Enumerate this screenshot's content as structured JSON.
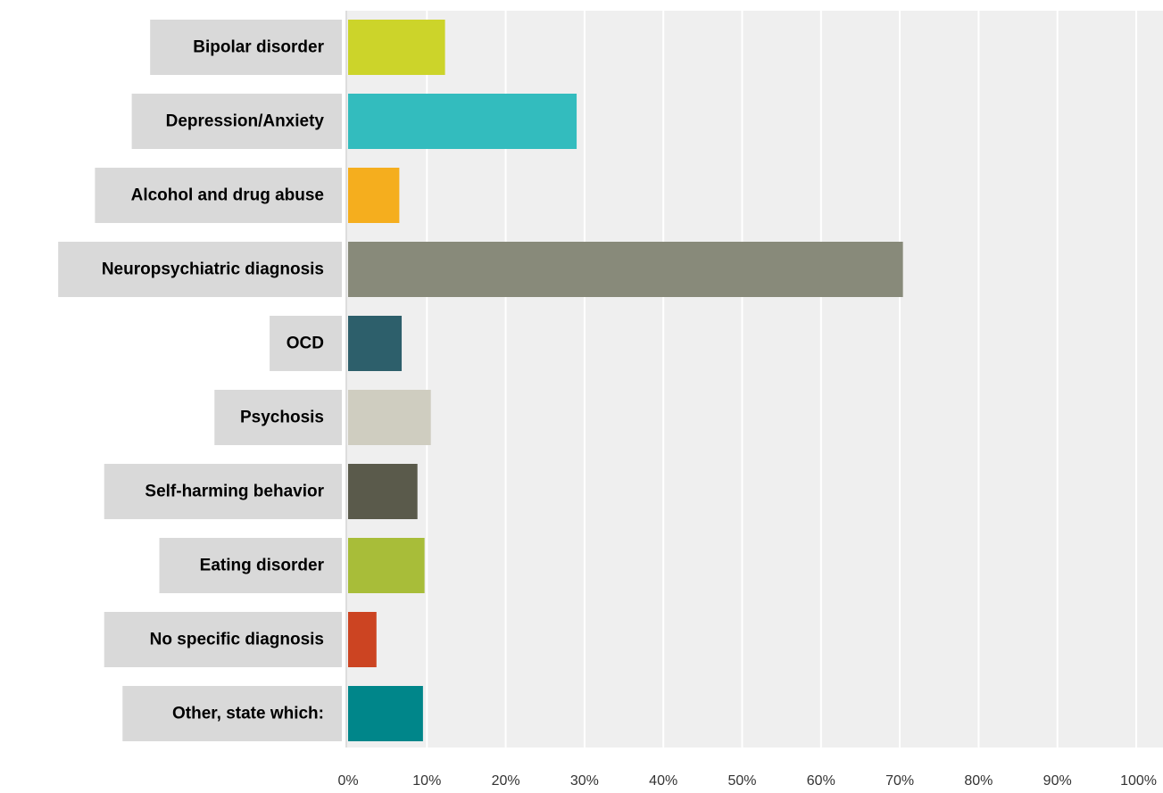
{
  "chart_data": {
    "type": "bar",
    "orientation": "horizontal",
    "categories": [
      "Bipolar disorder",
      "Depression/Anxiety",
      "Alcohol and drug abuse",
      "Neuropsychiatric diagnosis",
      "OCD",
      "Psychosis",
      "Self-harming behavior",
      "Eating disorder",
      "No specific diagnosis",
      "Other, state which:"
    ],
    "values": [
      12.3,
      29.0,
      6.5,
      70.4,
      6.8,
      10.5,
      8.8,
      9.7,
      3.6,
      9.5
    ],
    "colors": [
      "#ccd42a",
      "#33bcbe",
      "#f5ae1e",
      "#888a7a",
      "#2d5f6b",
      "#cfcdc0",
      "#5a5a4b",
      "#a8bd39",
      "#cc4422",
      "#00868a"
    ],
    "xlim": [
      0,
      100
    ],
    "x_ticks": [
      0,
      10,
      20,
      30,
      40,
      50,
      60,
      70,
      80,
      90,
      100
    ],
    "x_tick_labels": [
      "0%",
      "10%",
      "20%",
      "30%",
      "40%",
      "50%",
      "60%",
      "70%",
      "80%",
      "90%",
      "100%"
    ],
    "grid": true,
    "plot_background": "#efefef",
    "grid_color": "#ffffff",
    "label_background": "#d9d9d9",
    "title": "",
    "xlabel": "",
    "ylabel": ""
  }
}
